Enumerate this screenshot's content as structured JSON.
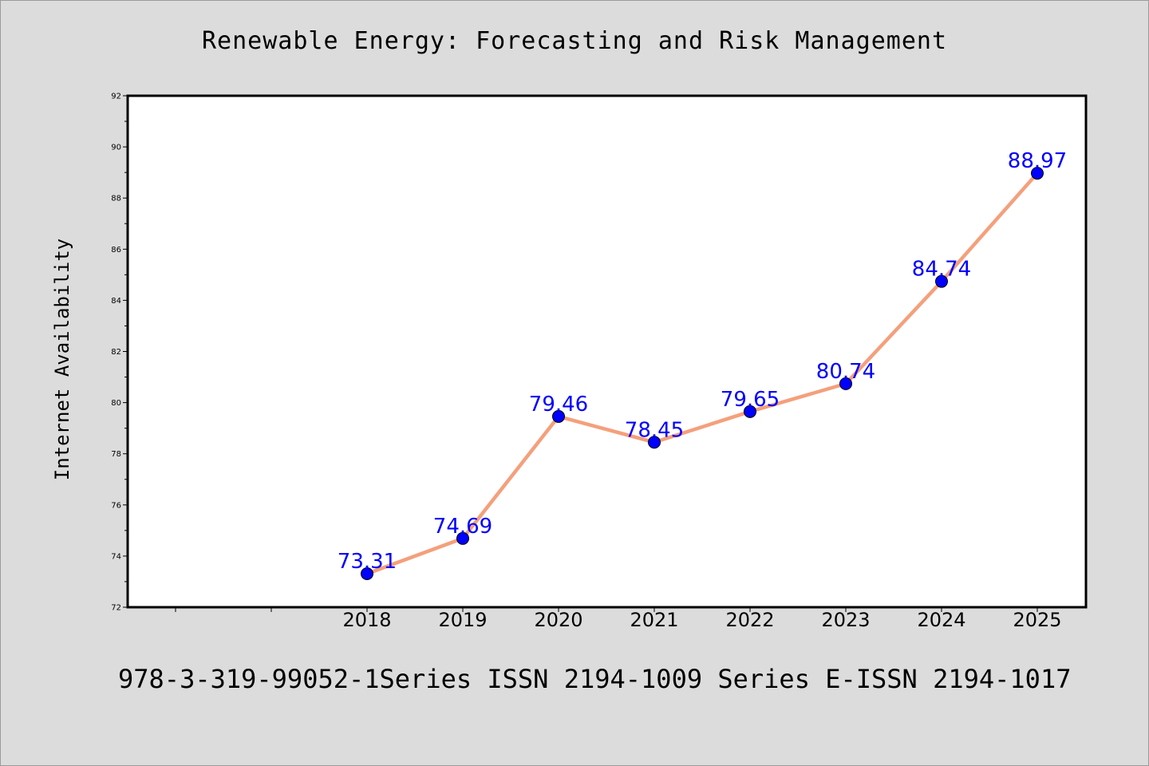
{
  "chart_data": {
    "type": "line",
    "title": "Renewable Energy: Forecasting and Risk Management",
    "xlabel": "",
    "ylabel": "Internet Availability",
    "categories": [
      "2018",
      "2019",
      "2020",
      "2021",
      "2022",
      "2023",
      "2024",
      "2025"
    ],
    "values": [
      73.31,
      74.69,
      79.46,
      78.45,
      79.65,
      80.74,
      84.74,
      88.97
    ],
    "value_labels": [
      "73.31",
      "74.69",
      "79.46",
      "78.45",
      "79.65",
      "80.74",
      "84.74",
      "88.97"
    ],
    "ylim": [
      72,
      92
    ],
    "yticks": [
      "72",
      "74",
      "76",
      "78",
      "80",
      "82",
      "84",
      "86",
      "88",
      "90",
      "92"
    ],
    "grid": false,
    "legend": "none",
    "line_color": "#f4a07c",
    "marker_color": "#0000ff",
    "label_color": "#0000ff"
  },
  "footer": "978-3-319-99052-1Series ISSN 2194-1009 Series E-ISSN 2194-1017"
}
